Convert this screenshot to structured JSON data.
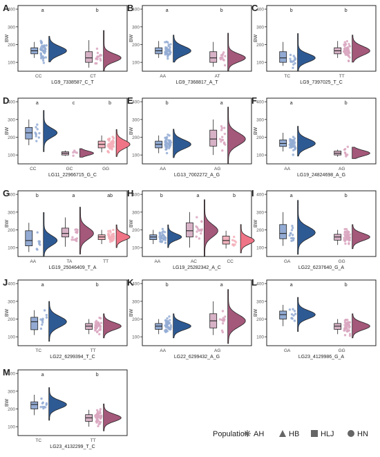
{
  "chart_data": {
    "type": "raincloud",
    "ylabel": "BW",
    "yticks": [
      100,
      200,
      300,
      400
    ],
    "ylim": [
      50,
      420
    ],
    "colors": {
      "blue": "#2e5a94",
      "blue_light": "#93abd3",
      "mauve": "#a4587a",
      "mauve_light": "#d9a6bf",
      "pink": "#ef7486",
      "pink_light": "#f5afb9",
      "box_blue": "#93abd3",
      "box_mauve": "#d7b2c6",
      "box_pink": "#f2b2bd",
      "box_gray": "#bfbfbf"
    },
    "panels": [
      {
        "letter": "A",
        "xlabel": "LG9_7338587_C_T",
        "groups": [
          {
            "label": "CC",
            "sig": "a",
            "color": "blue",
            "box": [
              125,
              148,
              165,
              182,
              215
            ],
            "n": 40,
            "center": 165,
            "spread": 55
          },
          {
            "label": "CT",
            "sig": "b",
            "color": "mauve",
            "box": [
              70,
              100,
              125,
              160,
              225
            ],
            "n": 14,
            "center": 125,
            "spread": 50
          }
        ]
      },
      {
        "letter": "B",
        "xlabel": "LG9_7368817_A_T",
        "groups": [
          {
            "label": "AA",
            "sig": "a",
            "color": "blue",
            "box": [
              125,
              148,
              165,
              182,
              220
            ],
            "n": 40,
            "center": 165,
            "spread": 55
          },
          {
            "label": "AT",
            "sig": "b",
            "color": "mauve",
            "box": [
              75,
              100,
              125,
              160,
              215
            ],
            "n": 13,
            "center": 125,
            "spread": 50
          }
        ]
      },
      {
        "letter": "C",
        "xlabel": "LG9_7397025_T_C",
        "groups": [
          {
            "label": "TC",
            "sig": "b",
            "color": "blue",
            "box": [
              80,
              100,
              125,
              160,
              215
            ],
            "n": 13,
            "center": 125,
            "spread": 50
          },
          {
            "label": "TT",
            "sig": "b",
            "color": "mauve",
            "box": [
              125,
              148,
              165,
              182,
              220
            ],
            "n": 40,
            "center": 165,
            "spread": 55
          }
        ]
      },
      {
        "letter": "D",
        "xlabel": "LG11_22966715_G_C",
        "groups": [
          {
            "label": "CC",
            "sig": "a",
            "color": "blue",
            "box": [
              155,
              190,
              225,
              255,
              300
            ],
            "n": 10,
            "center": 225,
            "spread": 55
          },
          {
            "label": "GC",
            "sig": "c",
            "color": "mauve",
            "box": [
              95,
              100,
              110,
              118,
              125
            ],
            "n": 5,
            "center": 110,
            "spread": 25
          },
          {
            "label": "GG",
            "sig": "b",
            "color": "pink",
            "box": [
              115,
              140,
              160,
              178,
              210
            ],
            "n": 40,
            "center": 160,
            "spread": 50
          }
        ]
      },
      {
        "letter": "E",
        "xlabel": "LG13_7002272_A_G",
        "groups": [
          {
            "label": "AA",
            "sig": "b",
            "color": "blue",
            "box": [
              110,
              140,
              160,
              178,
              210
            ],
            "n": 40,
            "center": 160,
            "spread": 55
          },
          {
            "label": "AG",
            "sig": "a",
            "color": "mauve",
            "box": [
              100,
              150,
              190,
              240,
              300
            ],
            "n": 14,
            "center": 190,
            "spread": 75
          }
        ]
      },
      {
        "letter": "F",
        "xlabel": "LG19_24824698_A_G",
        "groups": [
          {
            "label": "AA",
            "sig": "a",
            "color": "blue",
            "box": [
              120,
              148,
              165,
              185,
              225
            ],
            "n": 40,
            "center": 165,
            "spread": 55
          },
          {
            "label": "AG",
            "sig": "b",
            "color": "mauve",
            "box": [
              90,
              100,
              110,
              122,
              130
            ],
            "n": 8,
            "center": 110,
            "spread": 35
          }
        ]
      },
      {
        "letter": "G",
        "xlabel": "LG19_25046409_T_A",
        "groups": [
          {
            "label": "AA",
            "sig": "b",
            "color": "blue",
            "box": [
              75,
              110,
              140,
              195,
              240
            ],
            "n": 8,
            "center": 140,
            "spread": 60
          },
          {
            "label": "TA",
            "sig": "a",
            "color": "mauve",
            "box": [
              105,
              160,
              180,
              210,
              270
            ],
            "n": 14,
            "center": 180,
            "spread": 70
          },
          {
            "label": "TT",
            "sig": "ab",
            "color": "pink",
            "box": [
              120,
              145,
              160,
              172,
              200
            ],
            "n": 35,
            "center": 160,
            "spread": 40
          }
        ]
      },
      {
        "letter": "H",
        "xlabel": "LG19_25282342_A_C",
        "groups": [
          {
            "label": "AA",
            "sig": "b",
            "color": "blue",
            "box": [
              120,
              145,
              160,
              172,
              200
            ],
            "n": 35,
            "center": 160,
            "spread": 40
          },
          {
            "label": "AC",
            "sig": "a",
            "color": "mauve",
            "box": [
              100,
              160,
              195,
              240,
              300
            ],
            "n": 14,
            "center": 195,
            "spread": 75
          },
          {
            "label": "CC",
            "sig": "b",
            "color": "pink",
            "box": [
              95,
              120,
              140,
              165,
              195
            ],
            "n": 8,
            "center": 140,
            "spread": 45
          }
        ]
      },
      {
        "letter": "I",
        "xlabel": "LG22_6237640_G_A",
        "groups": [
          {
            "label": "GA",
            "sig": "a",
            "color": "blue",
            "box": [
              110,
              150,
              180,
              230,
              300
            ],
            "n": 12,
            "center": 185,
            "spread": 70
          },
          {
            "label": "GG",
            "sig": "b",
            "color": "mauve",
            "box": [
              115,
              142,
              160,
              175,
              200
            ],
            "n": 40,
            "center": 160,
            "spread": 45
          }
        ]
      },
      {
        "letter": "J",
        "xlabel": "LG22_6299394_T_C",
        "groups": [
          {
            "label": "TC",
            "sig": "a",
            "color": "blue",
            "box": [
              110,
              140,
              185,
              210,
              250
            ],
            "n": 10,
            "center": 185,
            "spread": 65
          },
          {
            "label": "TT",
            "sig": "b",
            "color": "mauve",
            "box": [
              115,
              142,
              160,
              175,
              200
            ],
            "n": 40,
            "center": 160,
            "spread": 45
          }
        ]
      },
      {
        "letter": "K",
        "xlabel": "LG22_6299432_A_G",
        "groups": [
          {
            "label": "AA",
            "sig": "b",
            "color": "blue",
            "box": [
              115,
              142,
              160,
              175,
              200
            ],
            "n": 40,
            "center": 160,
            "spread": 45
          },
          {
            "label": "AG",
            "sig": "a",
            "color": "mauve",
            "box": [
              110,
              150,
              190,
              230,
              300
            ],
            "n": 12,
            "center": 190,
            "spread": 75
          }
        ]
      },
      {
        "letter": "L",
        "xlabel": "LG23_4129986_G_A",
        "groups": [
          {
            "label": "GA",
            "sig": "a",
            "color": "blue",
            "box": [
              160,
              200,
              225,
              245,
              280
            ],
            "n": 10,
            "center": 225,
            "spread": 50
          },
          {
            "label": "GG",
            "sig": "b",
            "color": "mauve",
            "box": [
              115,
              142,
              160,
              175,
              200
            ],
            "n": 40,
            "center": 160,
            "spread": 45
          }
        ]
      },
      {
        "letter": "M",
        "xlabel": "LG23_4132299_T_C",
        "groups": [
          {
            "label": "TC",
            "sig": "a",
            "color": "blue",
            "box": [
              165,
              200,
              225,
              240,
              280
            ],
            "n": 10,
            "center": 225,
            "spread": 50
          },
          {
            "label": "TT",
            "sig": "b",
            "color": "mauve",
            "box": [
              100,
              130,
              150,
              168,
              195
            ],
            "n": 40,
            "center": 150,
            "spread": 45
          }
        ]
      }
    ],
    "legend": {
      "title": "Population",
      "items": [
        {
          "label": "AH",
          "shape": "asterisk"
        },
        {
          "label": "HB",
          "shape": "triangle"
        },
        {
          "label": "HLJ",
          "shape": "square"
        },
        {
          "label": "HN",
          "shape": "circle"
        }
      ]
    }
  }
}
